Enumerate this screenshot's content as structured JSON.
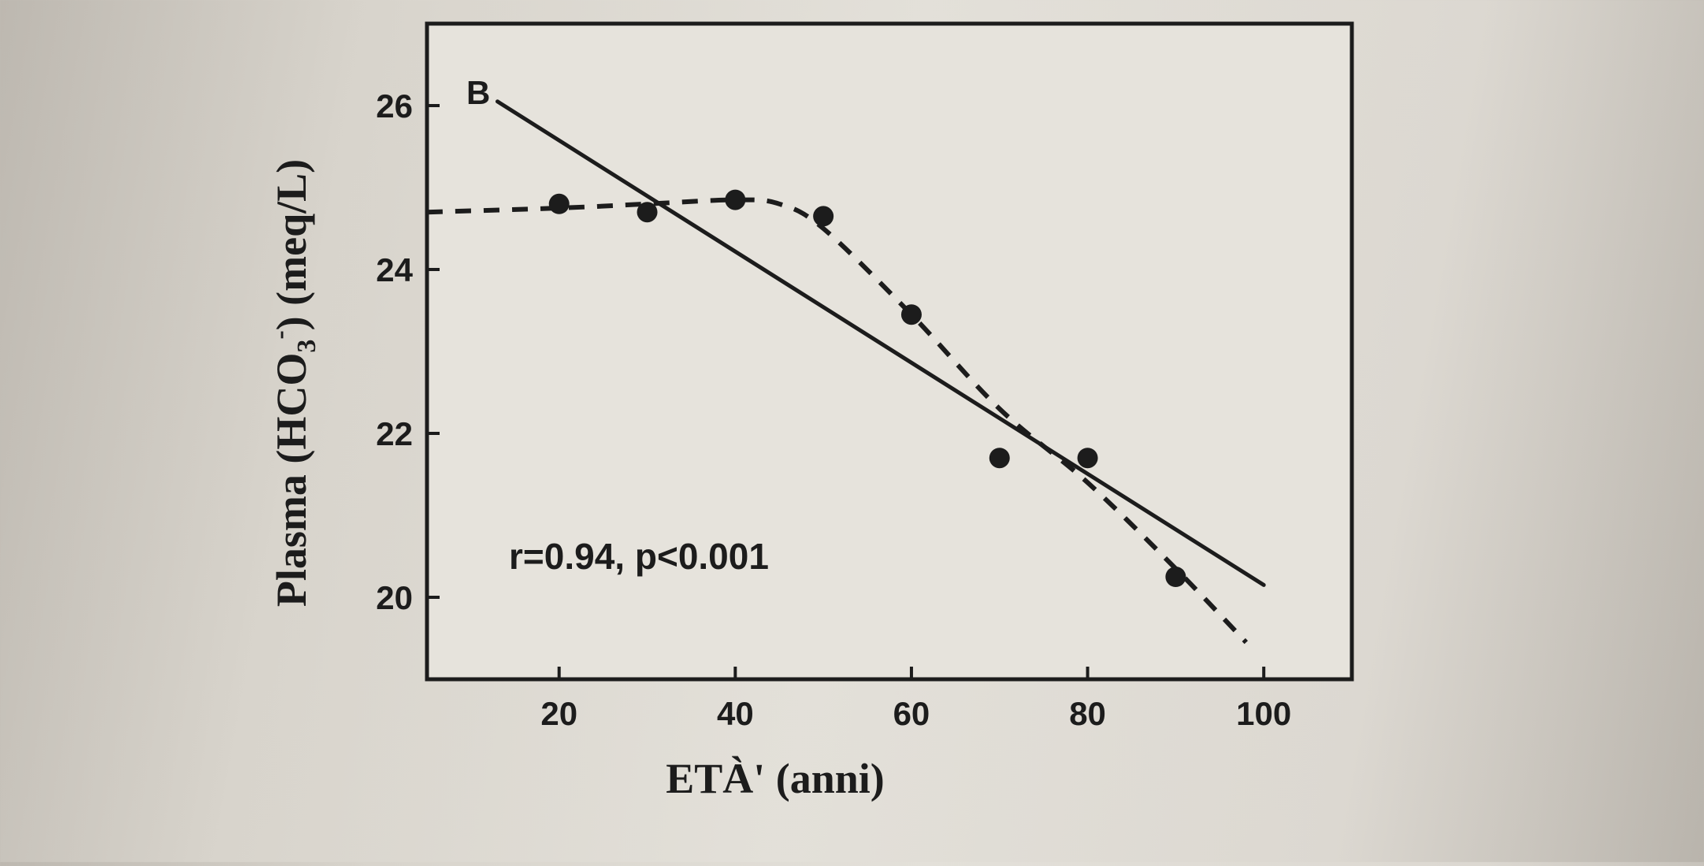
{
  "colors": {
    "ink": "#1c1c1c",
    "paper": "#e3e0d9",
    "plot_bg": "#e6e3dc"
  },
  "chart_data": {
    "type": "scatter",
    "panel_label": "B",
    "title": "",
    "xlabel": "ETÀ' (anni)",
    "ylabel_parts": {
      "pre": "Plasma (HCO",
      "sub": "3",
      "sup": "-",
      "post": ") (meq/L)"
    },
    "annotation": "r=0.94, p<0.001",
    "xlim": [
      5,
      110
    ],
    "ylim": [
      19,
      27
    ],
    "x_ticks": [
      20,
      40,
      60,
      80,
      100
    ],
    "y_ticks": [
      20,
      22,
      24,
      26
    ],
    "grid": false,
    "points": [
      {
        "x": 20,
        "y": 24.8
      },
      {
        "x": 30,
        "y": 24.7
      },
      {
        "x": 40,
        "y": 24.85
      },
      {
        "x": 50,
        "y": 24.65
      },
      {
        "x": 60,
        "y": 23.45
      },
      {
        "x": 70,
        "y": 21.7
      },
      {
        "x": 80,
        "y": 21.7
      },
      {
        "x": 90,
        "y": 20.25
      }
    ],
    "regression_line": {
      "style": "solid",
      "x": [
        13,
        100
      ],
      "y": [
        26.05,
        20.15
      ]
    },
    "trend_curve": {
      "style": "dashed",
      "points": [
        [
          5,
          24.7
        ],
        [
          20,
          24.75
        ],
        [
          30,
          24.8
        ],
        [
          40,
          24.85
        ],
        [
          45,
          24.8
        ],
        [
          50,
          24.5
        ],
        [
          60,
          23.45
        ],
        [
          70,
          22.3
        ],
        [
          80,
          21.4
        ],
        [
          90,
          20.35
        ],
        [
          98,
          19.45
        ]
      ]
    }
  }
}
